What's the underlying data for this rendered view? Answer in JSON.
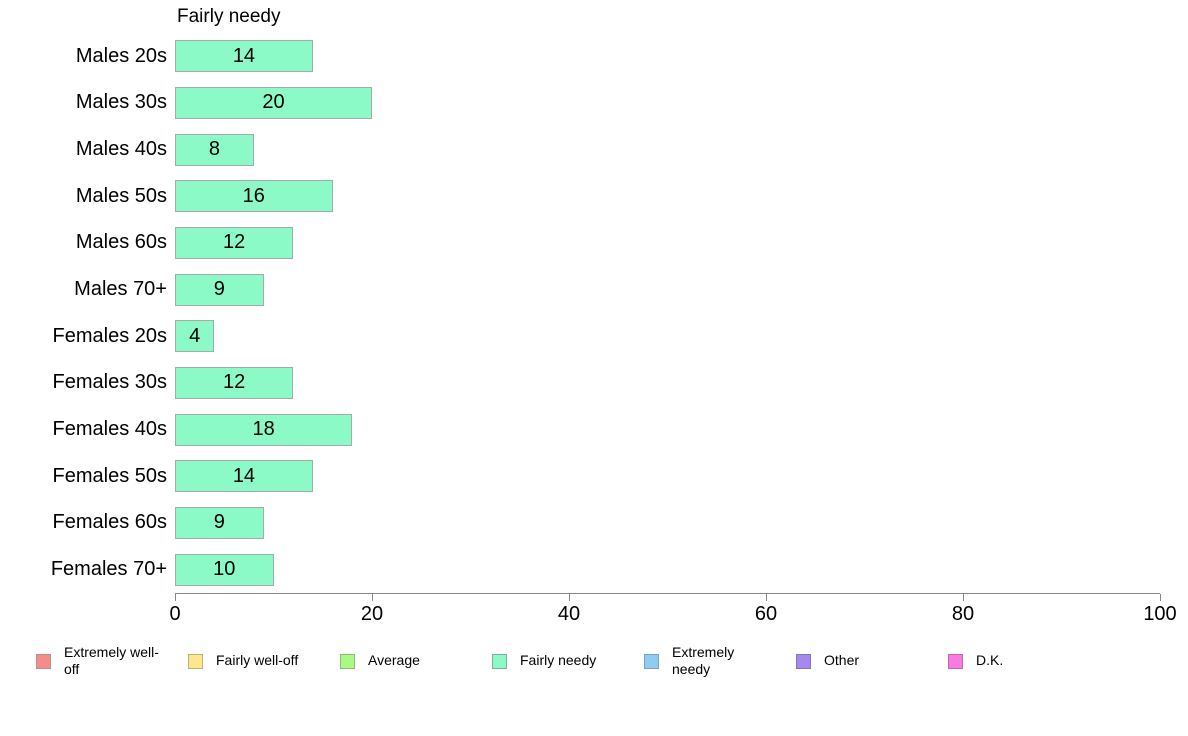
{
  "chart_data": {
    "type": "bar",
    "orientation": "horizontal",
    "title": "Fairly needy",
    "categories": [
      "Males 20s",
      "Males 30s",
      "Males 40s",
      "Males 50s",
      "Males 60s",
      "Males 70+",
      "Females 20s",
      "Females 30s",
      "Females 40s",
      "Females 50s",
      "Females 60s",
      "Females 70+"
    ],
    "values": [
      14,
      20,
      8,
      16,
      12,
      9,
      4,
      12,
      18,
      14,
      9,
      10
    ],
    "xlabel": "",
    "ylabel": "",
    "xlim": [
      0,
      100
    ],
    "x_ticks": [
      0,
      20,
      40,
      60,
      80,
      100
    ],
    "grid": false,
    "bar_color": "#8CFAC6",
    "bar_border_color": "#A3ADA7",
    "axis_color": "#888888",
    "text_color": "#000000",
    "legend_position": "bottom",
    "legend": [
      {
        "label": "Extremely well-off",
        "color": "#F58C8C",
        "border": "#B98F8F"
      },
      {
        "label": "Fairly well-off",
        "color": "#F9E88D",
        "border": "#BDB375"
      },
      {
        "label": "Average",
        "color": "#A9F986",
        "border": "#8FBC77"
      },
      {
        "label": "Fairly needy",
        "color": "#8CFAC6",
        "border": "#85AE9B"
      },
      {
        "label": "Extremely needy",
        "color": "#8FCCF2",
        "border": "#7FA3BD"
      },
      {
        "label": "Other",
        "color": "#A489F0",
        "border": "#8877B8"
      },
      {
        "label": "D.K.",
        "color": "#F87BE2",
        "border": "#BC6BAC"
      }
    ]
  }
}
